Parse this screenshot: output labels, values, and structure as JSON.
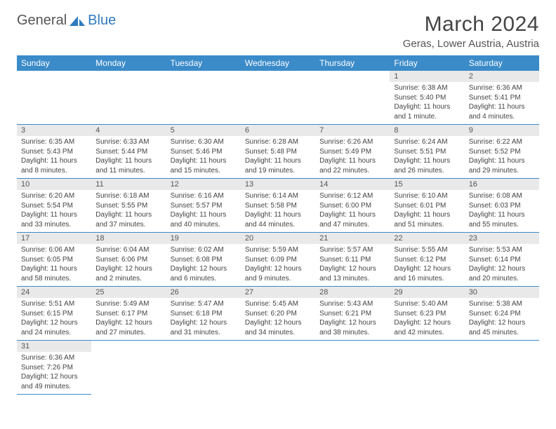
{
  "brand": {
    "name1": "General",
    "name2": "Blue"
  },
  "title": "March 2024",
  "location": "Geras, Lower Austria, Austria",
  "colors": {
    "header_bg": "#3b8bc9",
    "header_text": "#ffffff",
    "daynum_bg": "#e9e9e9",
    "border": "#3b8bc9",
    "text": "#444444",
    "brand_blue": "#2f7bbf"
  },
  "layout": {
    "first_day_col": 5,
    "days_in_month": 31
  },
  "day_headers": [
    "Sunday",
    "Monday",
    "Tuesday",
    "Wednesday",
    "Thursday",
    "Friday",
    "Saturday"
  ],
  "days": [
    {
      "n": 1,
      "sunrise": "6:38 AM",
      "sunset": "5:40 PM",
      "daylight": "11 hours and 1 minute."
    },
    {
      "n": 2,
      "sunrise": "6:36 AM",
      "sunset": "5:41 PM",
      "daylight": "11 hours and 4 minutes."
    },
    {
      "n": 3,
      "sunrise": "6:35 AM",
      "sunset": "5:43 PM",
      "daylight": "11 hours and 8 minutes."
    },
    {
      "n": 4,
      "sunrise": "6:33 AM",
      "sunset": "5:44 PM",
      "daylight": "11 hours and 11 minutes."
    },
    {
      "n": 5,
      "sunrise": "6:30 AM",
      "sunset": "5:46 PM",
      "daylight": "11 hours and 15 minutes."
    },
    {
      "n": 6,
      "sunrise": "6:28 AM",
      "sunset": "5:48 PM",
      "daylight": "11 hours and 19 minutes."
    },
    {
      "n": 7,
      "sunrise": "6:26 AM",
      "sunset": "5:49 PM",
      "daylight": "11 hours and 22 minutes."
    },
    {
      "n": 8,
      "sunrise": "6:24 AM",
      "sunset": "5:51 PM",
      "daylight": "11 hours and 26 minutes."
    },
    {
      "n": 9,
      "sunrise": "6:22 AM",
      "sunset": "5:52 PM",
      "daylight": "11 hours and 29 minutes."
    },
    {
      "n": 10,
      "sunrise": "6:20 AM",
      "sunset": "5:54 PM",
      "daylight": "11 hours and 33 minutes."
    },
    {
      "n": 11,
      "sunrise": "6:18 AM",
      "sunset": "5:55 PM",
      "daylight": "11 hours and 37 minutes."
    },
    {
      "n": 12,
      "sunrise": "6:16 AM",
      "sunset": "5:57 PM",
      "daylight": "11 hours and 40 minutes."
    },
    {
      "n": 13,
      "sunrise": "6:14 AM",
      "sunset": "5:58 PM",
      "daylight": "11 hours and 44 minutes."
    },
    {
      "n": 14,
      "sunrise": "6:12 AM",
      "sunset": "6:00 PM",
      "daylight": "11 hours and 47 minutes."
    },
    {
      "n": 15,
      "sunrise": "6:10 AM",
      "sunset": "6:01 PM",
      "daylight": "11 hours and 51 minutes."
    },
    {
      "n": 16,
      "sunrise": "6:08 AM",
      "sunset": "6:03 PM",
      "daylight": "11 hours and 55 minutes."
    },
    {
      "n": 17,
      "sunrise": "6:06 AM",
      "sunset": "6:05 PM",
      "daylight": "11 hours and 58 minutes."
    },
    {
      "n": 18,
      "sunrise": "6:04 AM",
      "sunset": "6:06 PM",
      "daylight": "12 hours and 2 minutes."
    },
    {
      "n": 19,
      "sunrise": "6:02 AM",
      "sunset": "6:08 PM",
      "daylight": "12 hours and 6 minutes."
    },
    {
      "n": 20,
      "sunrise": "5:59 AM",
      "sunset": "6:09 PM",
      "daylight": "12 hours and 9 minutes."
    },
    {
      "n": 21,
      "sunrise": "5:57 AM",
      "sunset": "6:11 PM",
      "daylight": "12 hours and 13 minutes."
    },
    {
      "n": 22,
      "sunrise": "5:55 AM",
      "sunset": "6:12 PM",
      "daylight": "12 hours and 16 minutes."
    },
    {
      "n": 23,
      "sunrise": "5:53 AM",
      "sunset": "6:14 PM",
      "daylight": "12 hours and 20 minutes."
    },
    {
      "n": 24,
      "sunrise": "5:51 AM",
      "sunset": "6:15 PM",
      "daylight": "12 hours and 24 minutes."
    },
    {
      "n": 25,
      "sunrise": "5:49 AM",
      "sunset": "6:17 PM",
      "daylight": "12 hours and 27 minutes."
    },
    {
      "n": 26,
      "sunrise": "5:47 AM",
      "sunset": "6:18 PM",
      "daylight": "12 hours and 31 minutes."
    },
    {
      "n": 27,
      "sunrise": "5:45 AM",
      "sunset": "6:20 PM",
      "daylight": "12 hours and 34 minutes."
    },
    {
      "n": 28,
      "sunrise": "5:43 AM",
      "sunset": "6:21 PM",
      "daylight": "12 hours and 38 minutes."
    },
    {
      "n": 29,
      "sunrise": "5:40 AM",
      "sunset": "6:23 PM",
      "daylight": "12 hours and 42 minutes."
    },
    {
      "n": 30,
      "sunrise": "5:38 AM",
      "sunset": "6:24 PM",
      "daylight": "12 hours and 45 minutes."
    },
    {
      "n": 31,
      "sunrise": "6:36 AM",
      "sunset": "7:26 PM",
      "daylight": "12 hours and 49 minutes."
    }
  ],
  "labels": {
    "sunrise": "Sunrise:",
    "sunset": "Sunset:",
    "daylight": "Daylight:"
  }
}
